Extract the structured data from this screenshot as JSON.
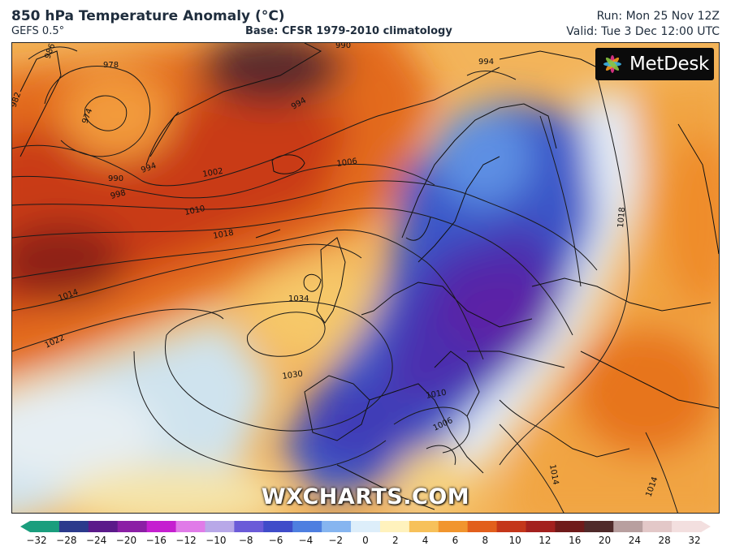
{
  "header": {
    "title": "850 hPa Temperature Anomaly (°C)",
    "model": "GEFS 0.5°",
    "base": "Base: CFSR 1979-2010 climatology",
    "run": "Run: Mon 25 Nov 12Z",
    "valid": "Valid: Tue 3 Dec 12:00 UTC"
  },
  "logo": {
    "text": "MetDesk",
    "icon": "metdesk-burst-logo"
  },
  "watermark": "WXCHARTS.COM",
  "colorbar": {
    "ticks": [
      "−32",
      "−28",
      "−24",
      "−20",
      "−16",
      "−12",
      "−10",
      "−8",
      "−6",
      "−4",
      "−2",
      "0",
      "2",
      "4",
      "6",
      "8",
      "10",
      "12",
      "16",
      "20",
      "24",
      "28",
      "32"
    ],
    "colors": [
      "#1a9e7d",
      "#2b3a8c",
      "#5b1a8a",
      "#8b1fa5",
      "#c51fd0",
      "#e07be8",
      "#b8a8e8",
      "#6b5bd8",
      "#3f4cc9",
      "#4e7fe0",
      "#86b5f0",
      "#ddeefa",
      "#fff2bd",
      "#f7c15a",
      "#f1952e",
      "#e25f1c",
      "#c4361a",
      "#a3201e",
      "#6f1a1a",
      "#4f2a2a",
      "#b89f9f",
      "#e3c8c8",
      "#f3dfdf"
    ]
  },
  "isobars": {
    "labels": [
      "978",
      "974",
      "982",
      "986",
      "990",
      "994",
      "998",
      "1002",
      "1006",
      "1010",
      "1014",
      "1018",
      "1022",
      "1030",
      "1034",
      "990",
      "994",
      "1018",
      "1010",
      "1006",
      "1014",
      "1014",
      "994"
    ]
  }
}
